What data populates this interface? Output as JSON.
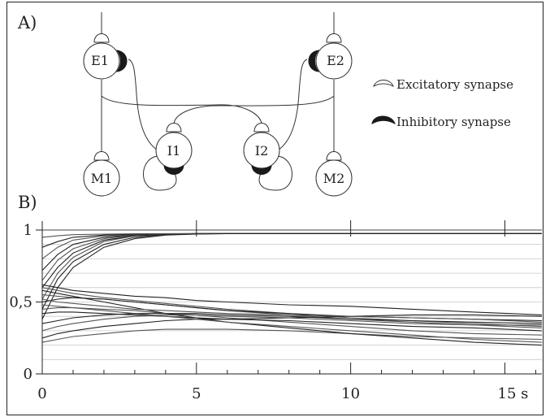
{
  "panel_a": {
    "label": "A)",
    "neurons": [
      {
        "id": "e1",
        "label": "E1"
      },
      {
        "id": "e2",
        "label": "E2"
      },
      {
        "id": "i1",
        "label": "I1"
      },
      {
        "id": "i2",
        "label": "I2"
      },
      {
        "id": "m1",
        "label": "M1"
      },
      {
        "id": "m2",
        "label": "M2"
      }
    ],
    "legend": {
      "excitatory": "Excitatory synapse",
      "inhibitory": "Inhibitory synapse"
    }
  },
  "panel_b": {
    "label": "B)"
  },
  "chart_data": {
    "type": "line",
    "title": "",
    "xlabel": "",
    "ylabel": "",
    "x_unit": "s",
    "xlim": [
      0,
      16.2
    ],
    "ylim": [
      0,
      1.02
    ],
    "x_ticks": [
      0,
      5,
      10,
      15
    ],
    "x_tick_labels": [
      "0",
      "5",
      "10",
      "15 s"
    ],
    "y_ticks": [
      0,
      0.5,
      1
    ],
    "y_tick_labels": [
      "0",
      "0,5",
      "1"
    ],
    "grid": {
      "horizontal": true,
      "vertical": false
    },
    "x": [
      0,
      0.5,
      1,
      2,
      3,
      4,
      5,
      6,
      8,
      10,
      12,
      14,
      16.2
    ],
    "series": [
      {
        "values": [
          0.45,
          0.66,
          0.78,
          0.9,
          0.95,
          0.97,
          0.975,
          0.975,
          0.975,
          0.975,
          0.975,
          0.975,
          0.975
        ]
      },
      {
        "values": [
          0.52,
          0.7,
          0.81,
          0.92,
          0.96,
          0.97,
          0.975,
          0.975,
          0.975,
          0.975,
          0.975,
          0.975,
          0.975
        ]
      },
      {
        "values": [
          0.6,
          0.74,
          0.84,
          0.93,
          0.96,
          0.97,
          0.975,
          0.975,
          0.975,
          0.975,
          0.975,
          0.975,
          0.975
        ]
      },
      {
        "values": [
          0.65,
          0.79,
          0.87,
          0.94,
          0.965,
          0.972,
          0.975,
          0.975,
          0.975,
          0.975,
          0.975,
          0.975,
          0.975
        ]
      },
      {
        "values": [
          0.72,
          0.83,
          0.9,
          0.95,
          0.968,
          0.973,
          0.975,
          0.975,
          0.975,
          0.975,
          0.975,
          0.975,
          0.975
        ]
      },
      {
        "values": [
          0.8,
          0.88,
          0.93,
          0.96,
          0.97,
          0.974,
          0.975,
          0.975,
          0.975,
          0.975,
          0.975,
          0.975,
          0.975
        ]
      },
      {
        "values": [
          0.88,
          0.92,
          0.95,
          0.965,
          0.972,
          0.974,
          0.975,
          0.975,
          0.975,
          0.975,
          0.975,
          0.975,
          0.975
        ]
      },
      {
        "values": [
          0.95,
          0.96,
          0.968,
          0.972,
          0.974,
          0.975,
          0.975,
          0.975,
          0.975,
          0.975,
          0.975,
          0.975,
          0.975
        ]
      },
      {
        "values": [
          0.38,
          0.6,
          0.74,
          0.88,
          0.94,
          0.965,
          0.972,
          0.975,
          0.975,
          0.975,
          0.975,
          0.975,
          0.975
        ]
      },
      {
        "values": [
          0.6,
          0.58,
          0.56,
          0.53,
          0.51,
          0.49,
          0.47,
          0.45,
          0.42,
          0.39,
          0.37,
          0.35,
          0.33
        ]
      },
      {
        "values": [
          0.62,
          0.6,
          0.58,
          0.56,
          0.54,
          0.53,
          0.51,
          0.5,
          0.48,
          0.47,
          0.45,
          0.43,
          0.41
        ]
      },
      {
        "values": [
          0.55,
          0.54,
          0.53,
          0.52,
          0.5,
          0.48,
          0.46,
          0.44,
          0.41,
          0.38,
          0.36,
          0.34,
          0.32
        ]
      },
      {
        "values": [
          0.5,
          0.52,
          0.53,
          0.52,
          0.5,
          0.48,
          0.46,
          0.44,
          0.42,
          0.4,
          0.39,
          0.38,
          0.37
        ]
      },
      {
        "values": [
          0.45,
          0.46,
          0.46,
          0.45,
          0.44,
          0.42,
          0.41,
          0.39,
          0.36,
          0.33,
          0.3,
          0.28,
          0.27
        ]
      },
      {
        "values": [
          0.42,
          0.43,
          0.43,
          0.42,
          0.41,
          0.4,
          0.39,
          0.38,
          0.37,
          0.35,
          0.33,
          0.32,
          0.3
        ]
      },
      {
        "values": [
          0.3,
          0.33,
          0.35,
          0.38,
          0.4,
          0.41,
          0.41,
          0.4,
          0.39,
          0.37,
          0.35,
          0.34,
          0.34
        ]
      },
      {
        "values": [
          0.25,
          0.28,
          0.3,
          0.33,
          0.35,
          0.37,
          0.38,
          0.38,
          0.39,
          0.4,
          0.41,
          0.41,
          0.4
        ]
      },
      {
        "values": [
          0.22,
          0.24,
          0.26,
          0.28,
          0.3,
          0.31,
          0.31,
          0.31,
          0.3,
          0.28,
          0.26,
          0.25,
          0.24
        ]
      },
      {
        "values": [
          0.58,
          0.56,
          0.54,
          0.5,
          0.46,
          0.42,
          0.39,
          0.36,
          0.32,
          0.28,
          0.25,
          0.22,
          0.2
        ]
      },
      {
        "values": [
          0.48,
          0.47,
          0.46,
          0.44,
          0.42,
          0.4,
          0.38,
          0.36,
          0.33,
          0.3,
          0.27,
          0.24,
          0.22
        ]
      },
      {
        "values": [
          0.35,
          0.37,
          0.39,
          0.41,
          0.42,
          0.42,
          0.42,
          0.41,
          0.4,
          0.38,
          0.37,
          0.36,
          0.35
        ]
      },
      {
        "values": [
          0.52,
          0.5,
          0.49,
          0.47,
          0.45,
          0.44,
          0.43,
          0.42,
          0.41,
          0.4,
          0.39,
          0.38,
          0.36
        ]
      }
    ]
  }
}
